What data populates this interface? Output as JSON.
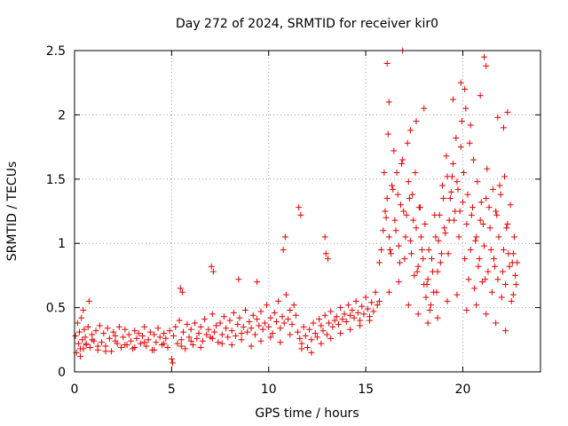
{
  "chart_data": {
    "type": "scatter",
    "title": "Day 272 of 2024, SRMTID for receiver kir0",
    "xlabel": "GPS time / hours",
    "ylabel": "SRMTID / TECUs",
    "xlim": [
      0,
      24
    ],
    "ylim": [
      0,
      2.5
    ],
    "xticks": [
      0,
      5,
      10,
      15,
      20
    ],
    "xtick_labels": [
      "0",
      "5",
      "10",
      "15",
      "20"
    ],
    "yticks": [
      0,
      0.5,
      1,
      1.5,
      2,
      2.5
    ],
    "ytick_labels": [
      "0",
      "0.5",
      "1",
      "1.5",
      "2",
      "2.5"
    ],
    "grid": true,
    "marker": "+",
    "series_color": "#e00000",
    "series": [
      {
        "name": "SRMTID",
        "x": [
          0.05,
          0.1,
          0.15,
          0.2,
          0.25,
          0.3,
          0.35,
          0.4,
          0.45,
          0.5,
          0.55,
          0.6,
          0.7,
          0.8,
          0.9,
          1.0,
          1.1,
          1.2,
          1.3,
          1.4,
          1.5,
          1.6,
          1.7,
          1.8,
          1.9,
          2.0,
          2.1,
          2.2,
          2.3,
          2.4,
          2.5,
          2.6,
          2.7,
          2.8,
          2.9,
          3.0,
          3.1,
          3.2,
          3.3,
          3.4,
          3.5,
          3.6,
          3.7,
          3.8,
          3.9,
          4.0,
          4.1,
          4.2,
          4.3,
          4.4,
          4.5,
          4.6,
          4.7,
          4.8,
          4.9,
          5.0,
          5.1,
          5.2,
          5.3,
          5.4,
          5.5,
          5.6,
          5.7,
          5.8,
          5.9,
          6.0,
          6.1,
          6.2,
          6.3,
          6.4,
          6.5,
          6.6,
          6.7,
          6.8,
          6.9,
          7.0,
          7.1,
          7.2,
          7.3,
          7.4,
          7.5,
          7.6,
          7.7,
          7.8,
          7.9,
          8.0,
          8.1,
          8.2,
          8.3,
          8.4,
          8.5,
          8.6,
          8.7,
          8.8,
          8.9,
          9.0,
          9.1,
          9.2,
          9.3,
          9.4,
          9.5,
          9.6,
          9.7,
          9.8,
          9.9,
          10.0,
          10.1,
          10.2,
          10.3,
          10.4,
          10.5,
          10.6,
          10.7,
          10.8,
          10.9,
          11.0,
          11.1,
          11.2,
          11.3,
          11.4,
          11.5,
          11.6,
          11.7,
          11.8,
          11.9,
          12.0,
          12.1,
          12.2,
          12.3,
          12.4,
          12.5,
          12.6,
          12.7,
          12.8,
          12.9,
          13.0,
          13.1,
          13.2,
          13.3,
          13.4,
          13.5,
          13.6,
          13.7,
          13.8,
          13.9,
          14.0,
          14.1,
          14.2,
          14.3,
          14.4,
          14.5,
          14.6,
          14.7,
          14.8,
          14.9,
          15.0,
          15.1,
          15.2,
          15.3,
          15.4,
          15.5,
          15.6,
          15.7,
          15.8,
          15.9,
          16.0,
          16.1,
          16.2,
          16.3,
          16.4,
          16.5,
          16.6,
          16.7,
          16.8,
          16.9,
          17.0,
          17.1,
          17.2,
          17.3,
          17.4,
          17.5,
          17.6,
          17.7,
          17.8,
          17.9,
          18.0,
          18.1,
          18.2,
          18.3,
          18.4,
          18.5,
          18.6,
          18.7,
          18.8,
          18.9,
          19.0,
          19.1,
          19.2,
          19.3,
          19.4,
          19.5,
          19.6,
          19.7,
          19.8,
          19.9,
          20.0,
          20.1,
          20.2,
          20.3,
          20.4,
          20.5,
          20.6,
          20.7,
          20.8,
          20.9,
          21.0,
          21.1,
          21.2,
          21.3,
          21.4,
          21.5,
          21.6,
          21.7,
          21.8,
          21.9,
          22.0,
          22.1,
          22.2,
          22.3,
          22.4,
          22.5,
          22.6,
          22.7,
          22.8,
          0.3,
          0.6,
          0.9,
          1.2,
          1.6,
          2.1,
          2.6,
          3.1,
          3.6,
          4.1,
          4.6,
          5.05,
          5.5,
          6.0,
          6.5,
          7.1,
          7.6,
          8.1,
          8.6,
          9.1,
          9.6,
          10.1,
          10.6,
          11.1,
          11.7,
          12.2,
          12.7,
          13.2,
          13.7,
          14.2,
          14.7,
          15.2,
          15.7,
          16.2,
          16.7,
          17.2,
          17.7,
          18.2,
          18.7,
          19.2,
          19.7,
          20.2,
          20.7,
          21.2,
          21.7,
          22.2,
          22.6,
          15.95,
          16.05,
          16.15,
          16.25,
          16.35,
          16.45,
          16.55,
          16.65,
          16.75,
          16.85,
          16.95,
          17.05,
          17.15,
          17.25,
          17.35,
          17.45,
          17.55,
          17.65,
          17.75,
          17.85,
          17.95,
          18.05,
          18.15,
          18.25,
          18.35,
          18.45,
          18.55,
          18.65,
          18.75,
          18.85,
          18.95,
          19.05,
          19.15,
          19.25,
          19.35,
          19.45,
          19.55,
          19.65,
          19.75,
          19.85,
          19.95,
          20.05,
          20.15,
          20.25,
          20.35,
          20.45,
          20.55,
          20.65,
          20.75,
          20.85,
          20.95,
          21.05,
          21.15,
          21.25,
          21.35,
          21.45,
          21.55,
          21.65,
          21.75,
          21.85,
          21.95,
          22.05,
          22.15,
          22.25,
          22.35,
          22.45,
          22.55,
          22.65,
          22.75,
          16.1,
          16.2,
          16.9,
          17.3,
          17.6,
          18.0,
          19.5,
          19.9,
          20.1,
          20.4,
          20.9,
          21.1,
          21.2,
          21.8,
          22.1,
          22.3,
          7.05,
          7.15,
          8.45,
          9.4,
          10.75,
          10.85,
          11.55,
          11.65,
          12.9,
          12.95,
          13.05,
          0.45,
          0.75,
          5.45,
          5.55
        ],
        "y": [
          0.28,
          0.15,
          0.38,
          0.22,
          0.31,
          0.12,
          0.42,
          0.25,
          0.18,
          0.33,
          0.27,
          0.21,
          0.35,
          0.19,
          0.29,
          0.24,
          0.32,
          0.17,
          0.36,
          0.23,
          0.3,
          0.2,
          0.34,
          0.26,
          0.16,
          0.31,
          0.28,
          0.22,
          0.35,
          0.19,
          0.27,
          0.33,
          0.21,
          0.29,
          0.24,
          0.18,
          0.32,
          0.26,
          0.3,
          0.22,
          0.28,
          0.35,
          0.2,
          0.25,
          0.31,
          0.17,
          0.29,
          0.23,
          0.34,
          0.27,
          0.21,
          0.3,
          0.26,
          0.19,
          0.32,
          0.1,
          0.28,
          0.35,
          0.22,
          0.4,
          0.25,
          0.31,
          0.18,
          0.37,
          0.27,
          0.33,
          0.21,
          0.38,
          0.26,
          0.3,
          0.35,
          0.24,
          0.41,
          0.29,
          0.33,
          0.27,
          0.45,
          0.31,
          0.36,
          0.23,
          0.38,
          0.29,
          0.43,
          0.34,
          0.27,
          0.4,
          0.32,
          0.46,
          0.28,
          0.37,
          0.42,
          0.3,
          0.35,
          0.48,
          0.31,
          0.39,
          0.34,
          0.44,
          0.29,
          0.41,
          0.36,
          0.47,
          0.33,
          0.38,
          0.52,
          0.35,
          0.42,
          0.3,
          0.46,
          0.39,
          0.55,
          0.34,
          0.43,
          0.38,
          0.6,
          0.41,
          0.48,
          0.37,
          0.52,
          0.44,
          0.31,
          0.26,
          0.22,
          0.35,
          0.28,
          0.19,
          0.33,
          0.25,
          0.38,
          0.3,
          0.27,
          0.41,
          0.36,
          0.32,
          0.44,
          0.29,
          0.38,
          0.47,
          0.35,
          0.4,
          0.43,
          0.37,
          0.5,
          0.41,
          0.45,
          0.39,
          0.52,
          0.44,
          0.48,
          0.42,
          0.55,
          0.46,
          0.4,
          0.51,
          0.45,
          0.58,
          0.49,
          0.43,
          0.54,
          0.47,
          0.62,
          0.52,
          0.85,
          0.95,
          1.1,
          1.25,
          1.35,
          1.05,
          0.92,
          1.42,
          1.18,
          1.55,
          0.98,
          1.3,
          1.65,
          0.88,
          1.22,
          1.48,
          1.02,
          1.38,
          0.75,
          1.12,
          0.82,
          1.28,
          0.95,
          0.68,
          0.58,
          0.72,
          0.48,
          0.88,
          0.62,
          1.05,
          0.78,
          1.22,
          0.92,
          1.35,
          1.08,
          1.52,
          1.18,
          1.4,
          1.62,
          1.25,
          1.48,
          1.05,
          1.75,
          1.32,
          0.88,
          1.15,
          0.72,
          0.95,
          1.28,
          0.65,
          1.05,
          0.82,
          1.18,
          0.7,
          0.98,
          1.35,
          0.78,
          1.12,
          0.62,
          0.88,
          1.25,
          0.72,
          1.45,
          0.58,
          0.95,
          0.68,
          1.15,
          0.82,
          0.55,
          0.92,
          0.75,
          0.85,
          0.18,
          0.22,
          0.25,
          0.2,
          0.16,
          0.24,
          0.21,
          0.19,
          0.23,
          0.17,
          0.22,
          0.07,
          0.2,
          0.24,
          0.19,
          0.26,
          0.22,
          0.21,
          0.25,
          0.2,
          0.24,
          0.27,
          0.23,
          0.29,
          0.18,
          0.15,
          0.22,
          0.26,
          0.3,
          0.33,
          0.36,
          0.4,
          0.55,
          0.62,
          0.7,
          0.52,
          0.45,
          0.38,
          0.42,
          0.55,
          0.6,
          0.48,
          0.52,
          0.45,
          0.38,
          0.32,
          0.6,
          1.55,
          1.2,
          1.85,
          0.95,
          1.45,
          1.72,
          1.1,
          1.38,
          0.85,
          1.62,
          1.25,
          1.05,
          1.78,
          1.35,
          0.92,
          1.18,
          1.55,
          0.78,
          1.28,
          1.05,
          0.88,
          1.15,
          0.68,
          0.95,
          0.52,
          0.78,
          1.22,
          0.62,
          1.02,
          0.85,
          1.45,
          1.12,
          1.68,
          0.92,
          1.35,
          1.52,
          1.18,
          1.82,
          1.42,
          1.25,
          1.95,
          1.55,
          2.05,
          1.38,
          1.78,
          1.22,
          1.65,
          1.02,
          1.48,
          0.88,
          1.32,
          1.15,
          0.72,
          1.58,
          1.28,
          0.95,
          1.42,
          0.82,
          1.22,
          1.05,
          1.38,
          0.78,
          1.52,
          1.12,
          0.92,
          1.3,
          0.85,
          1.05,
          0.68,
          2.4,
          2.1,
          2.5,
          1.88,
          1.95,
          2.05,
          2.12,
          2.25,
          2.2,
          1.92,
          2.15,
          2.45,
          2.38,
          1.98,
          1.9,
          2.02,
          0.82,
          0.78,
          0.72,
          0.7,
          0.95,
          1.05,
          1.28,
          1.22,
          1.05,
          0.92,
          0.88,
          0.48,
          0.55,
          0.65,
          0.62
        ]
      }
    ]
  }
}
